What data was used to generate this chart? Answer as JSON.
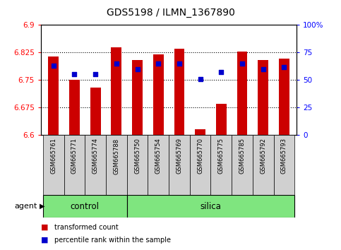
{
  "title": "GDS5198 / ILMN_1367890",
  "samples": [
    "GSM665761",
    "GSM665771",
    "GSM665774",
    "GSM665788",
    "GSM665750",
    "GSM665754",
    "GSM665769",
    "GSM665770",
    "GSM665775",
    "GSM665785",
    "GSM665792",
    "GSM665793"
  ],
  "groups": [
    "control",
    "control",
    "control",
    "control",
    "silica",
    "silica",
    "silica",
    "silica",
    "silica",
    "silica",
    "silica",
    "silica"
  ],
  "bar_values": [
    6.815,
    6.75,
    6.73,
    6.84,
    6.805,
    6.82,
    6.835,
    6.615,
    6.685,
    6.828,
    6.805,
    6.808
  ],
  "percentile_values": [
    63,
    55,
    55,
    65,
    60,
    65,
    65,
    51,
    57,
    65,
    60,
    62
  ],
  "ylim_left": [
    6.6,
    6.9
  ],
  "ylim_right": [
    0,
    100
  ],
  "yticks_left": [
    6.6,
    6.675,
    6.75,
    6.825,
    6.9
  ],
  "yticks_right": [
    0,
    25,
    50,
    75,
    100
  ],
  "ytick_labels_left": [
    "6.6",
    "6.675",
    "6.75",
    "6.825",
    "6.9"
  ],
  "ytick_labels_right": [
    "0",
    "25",
    "50",
    "75",
    "100%"
  ],
  "bar_color": "#cc0000",
  "dot_color": "#0000cc",
  "group_color": "#7FE57F",
  "gray_box_color": "#d0d0d0",
  "agent_label": "agent",
  "legend_bar": "transformed count",
  "legend_dot": "percentile rank within the sample",
  "grid_color": "black",
  "grid_style": ":",
  "grid_lw": 0.8,
  "grid_lines": [
    6.675,
    6.75,
    6.825
  ],
  "n_control": 4,
  "bar_width": 0.5,
  "title_fontsize": 10
}
